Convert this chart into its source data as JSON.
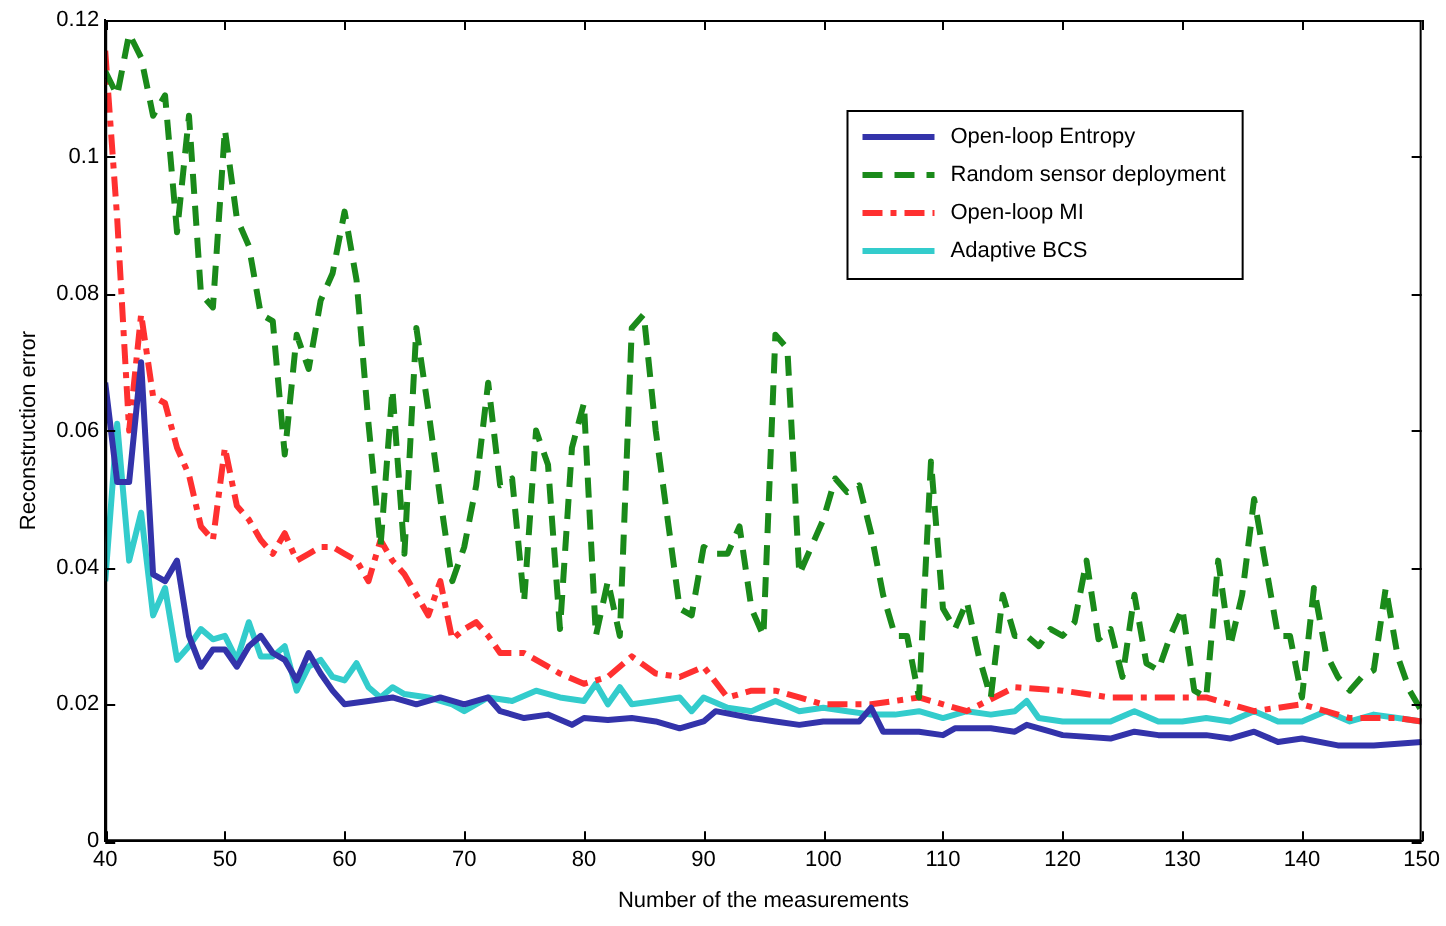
{
  "chart_data": {
    "type": "line",
    "xlabel": "Number of the measurements",
    "ylabel": "Reconstruction error",
    "xlim": [
      40,
      150
    ],
    "xticks": [
      40,
      50,
      60,
      70,
      80,
      90,
      100,
      110,
      120,
      130,
      140,
      150
    ],
    "ylim": [
      0,
      0.12
    ],
    "yticks": [
      0,
      0.02,
      0.04,
      0.06,
      0.08,
      0.1,
      0.12
    ],
    "grid": false,
    "legend": "top right",
    "marker": "none",
    "series": [
      {
        "name": "Open-loop Entropy",
        "color": "#3333aa",
        "line_style": "solid",
        "x": [
          40,
          41,
          42,
          43,
          44,
          45,
          46,
          47,
          48,
          49,
          50,
          51,
          52,
          53,
          54,
          55,
          56,
          57,
          58,
          59,
          60,
          62,
          64,
          66,
          68,
          70,
          72,
          73,
          75,
          77,
          79,
          80,
          82,
          84,
          86,
          88,
          90,
          91,
          94,
          96,
          98,
          100,
          103,
          104,
          105,
          108,
          110,
          111,
          114,
          116,
          117,
          119,
          120,
          124,
          126,
          128,
          132,
          134,
          136,
          138,
          140,
          143,
          146,
          150
        ],
        "values": [
          0.067,
          0.0525,
          0.0525,
          0.07,
          0.039,
          0.038,
          0.041,
          0.03,
          0.0255,
          0.028,
          0.028,
          0.0255,
          0.0285,
          0.03,
          0.0275,
          0.0265,
          0.0235,
          0.0275,
          0.0245,
          0.022,
          0.02,
          0.0205,
          0.021,
          0.02,
          0.021,
          0.02,
          0.021,
          0.019,
          0.018,
          0.0185,
          0.017,
          0.018,
          0.0177,
          0.018,
          0.0175,
          0.0165,
          0.0175,
          0.019,
          0.018,
          0.0175,
          0.017,
          0.0175,
          0.0175,
          0.0195,
          0.016,
          0.016,
          0.0155,
          0.0165,
          0.0165,
          0.016,
          0.017,
          0.016,
          0.0155,
          0.015,
          0.016,
          0.0155,
          0.0155,
          0.015,
          0.016,
          0.0145,
          0.015,
          0.014,
          0.014,
          0.0145
        ]
      },
      {
        "name": "Random sensor deployment",
        "color": "#1a8a1a",
        "line_style": "dashed",
        "x": [
          40,
          41,
          42,
          43,
          44,
          45,
          46,
          47,
          48,
          49,
          50,
          51,
          52,
          53,
          54,
          55,
          56,
          57,
          58,
          59,
          60,
          61,
          62,
          63,
          64,
          65,
          66,
          67,
          68,
          69,
          70,
          71,
          72,
          73,
          74,
          75,
          76,
          77,
          78,
          79,
          80,
          81,
          82,
          83,
          84,
          85,
          86,
          87,
          88,
          89,
          90,
          91,
          92,
          93,
          94,
          95,
          96,
          97,
          98,
          99,
          100,
          101,
          102,
          103,
          104,
          105,
          106,
          107,
          108,
          109,
          110,
          111,
          112,
          113,
          114,
          115,
          116,
          117,
          118,
          119,
          120,
          121,
          122,
          123,
          124,
          125,
          126,
          127,
          128,
          129,
          130,
          131,
          132,
          133,
          134,
          135,
          136,
          137,
          138,
          139,
          140,
          141,
          142,
          143,
          144,
          145,
          146,
          147,
          148,
          149,
          150
        ],
        "values": [
          0.1125,
          0.109,
          0.118,
          0.1145,
          0.106,
          0.109,
          0.089,
          0.106,
          0.08,
          0.078,
          0.104,
          0.091,
          0.087,
          0.077,
          0.076,
          0.0565,
          0.074,
          0.069,
          0.079,
          0.083,
          0.092,
          0.082,
          0.061,
          0.043,
          0.066,
          0.042,
          0.075,
          0.063,
          0.05,
          0.038,
          0.043,
          0.052,
          0.067,
          0.052,
          0.053,
          0.035,
          0.06,
          0.055,
          0.031,
          0.0575,
          0.064,
          0.03,
          0.038,
          0.03,
          0.075,
          0.077,
          0.06,
          0.047,
          0.034,
          0.033,
          0.043,
          0.042,
          0.042,
          0.046,
          0.034,
          0.03,
          0.074,
          0.072,
          0.039,
          0.043,
          0.047,
          0.053,
          0.051,
          0.052,
          0.045,
          0.036,
          0.03,
          0.03,
          0.021,
          0.0555,
          0.034,
          0.031,
          0.035,
          0.027,
          0.021,
          0.036,
          0.03,
          0.03,
          0.0285,
          0.031,
          0.03,
          0.032,
          0.041,
          0.0295,
          0.031,
          0.024,
          0.036,
          0.026,
          0.025,
          0.03,
          0.034,
          0.022,
          0.021,
          0.041,
          0.0285,
          0.036,
          0.05,
          0.04,
          0.03,
          0.03,
          0.021,
          0.037,
          0.0275,
          0.024,
          0.022,
          0.024,
          0.025,
          0.037,
          0.027,
          0.022,
          0.019
        ]
      },
      {
        "name": "Open-loop MI",
        "color": "#ff3030",
        "line_style": "dashdot",
        "x": [
          40,
          41,
          42,
          43,
          44,
          45,
          46,
          47,
          48,
          49,
          50,
          51,
          52,
          53,
          54,
          55,
          56,
          57,
          58,
          59,
          60,
          61,
          62,
          63,
          64,
          65,
          66,
          67,
          68,
          69,
          70,
          71,
          72,
          73,
          74,
          75,
          76,
          77,
          78,
          80,
          82,
          84,
          86,
          88,
          90,
          92,
          94,
          96,
          98,
          100,
          104,
          108,
          112,
          116,
          120,
          124,
          128,
          132,
          136,
          140,
          144,
          148,
          150
        ],
        "values": [
          0.1155,
          0.091,
          0.06,
          0.077,
          0.065,
          0.064,
          0.0575,
          0.0535,
          0.046,
          0.044,
          0.0575,
          0.049,
          0.047,
          0.044,
          0.042,
          0.045,
          0.041,
          0.042,
          0.043,
          0.043,
          0.042,
          0.041,
          0.038,
          0.044,
          0.041,
          0.039,
          0.036,
          0.033,
          0.038,
          0.0295,
          0.031,
          0.032,
          0.03,
          0.0275,
          0.0275,
          0.0275,
          0.0265,
          0.0255,
          0.0245,
          0.023,
          0.024,
          0.027,
          0.0245,
          0.024,
          0.0255,
          0.021,
          0.022,
          0.022,
          0.021,
          0.02,
          0.02,
          0.021,
          0.019,
          0.0225,
          0.022,
          0.021,
          0.021,
          0.021,
          0.019,
          0.02,
          0.018,
          0.018,
          0.0175
        ]
      },
      {
        "name": "Adaptive BCS",
        "color": "#33cccc",
        "line_style": "solid",
        "x": [
          40,
          41,
          42,
          43,
          44,
          45,
          46,
          47,
          48,
          49,
          50,
          51,
          52,
          53,
          54,
          55,
          56,
          57,
          58,
          59,
          60,
          61,
          62,
          63,
          64,
          65,
          67,
          69,
          70,
          72,
          74,
          76,
          78,
          80,
          81,
          82,
          83,
          84,
          86,
          88,
          89,
          90,
          92,
          94,
          96,
          98,
          100,
          102,
          104,
          106,
          108,
          110,
          112,
          114,
          116,
          117,
          118,
          120,
          124,
          126,
          128,
          130,
          132,
          134,
          136,
          138,
          140,
          142,
          144,
          146,
          148,
          150
        ],
        "values": [
          0.038,
          0.061,
          0.041,
          0.048,
          0.033,
          0.037,
          0.0265,
          0.0285,
          0.031,
          0.0295,
          0.03,
          0.0265,
          0.032,
          0.027,
          0.027,
          0.0285,
          0.022,
          0.0255,
          0.0265,
          0.024,
          0.0235,
          0.026,
          0.0225,
          0.021,
          0.0225,
          0.0215,
          0.021,
          0.02,
          0.019,
          0.021,
          0.0205,
          0.022,
          0.021,
          0.0205,
          0.023,
          0.02,
          0.0225,
          0.02,
          0.0205,
          0.021,
          0.019,
          0.021,
          0.0195,
          0.019,
          0.0205,
          0.019,
          0.0195,
          0.019,
          0.0185,
          0.0185,
          0.019,
          0.018,
          0.019,
          0.0185,
          0.019,
          0.0205,
          0.018,
          0.0175,
          0.0175,
          0.019,
          0.0175,
          0.0175,
          0.018,
          0.0175,
          0.019,
          0.0175,
          0.0175,
          0.019,
          0.0175,
          0.0185,
          0.018,
          0.0175
        ]
      }
    ]
  }
}
